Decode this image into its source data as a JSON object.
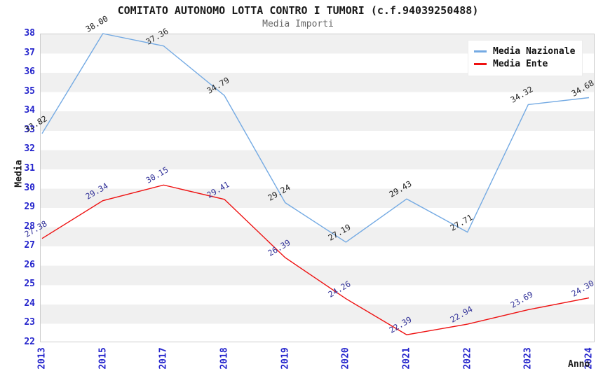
{
  "header": {
    "title": "COMITATO AUTONOMO LOTTA CONTRO I TUMORI (c.f.94039250488)",
    "subtitle": "Media Importi"
  },
  "chart_data": {
    "type": "line",
    "title": "COMITATO AUTONOMO LOTTA CONTRO I TUMORI (c.f.94039250488)",
    "subtitle": "Media Importi",
    "xlabel": "Anno",
    "ylabel": "Media",
    "categories": [
      "2013",
      "2015",
      "2017",
      "2018",
      "2019",
      "2020",
      "2021",
      "2022",
      "2023",
      "2024"
    ],
    "series": [
      {
        "name": "Media Nazionale",
        "color": "#74aae3",
        "label_color": "#222222",
        "values": [
          32.82,
          38.0,
          37.36,
          34.79,
          29.24,
          27.19,
          29.43,
          27.71,
          34.32,
          34.68
        ]
      },
      {
        "name": "Media Ente",
        "color": "#ee1111",
        "label_color": "#333399",
        "values": [
          27.38,
          29.34,
          30.15,
          29.41,
          26.39,
          24.26,
          22.39,
          22.94,
          23.69,
          24.3
        ]
      }
    ],
    "ylim": [
      22,
      38
    ],
    "yticks": [
      22,
      23,
      24,
      25,
      26,
      27,
      28,
      29,
      30,
      31,
      32,
      33,
      34,
      35,
      36,
      37,
      38
    ],
    "grid": "striped-horizontal-bands",
    "legend_position": "top-right",
    "tick_label_color": "#2424cc",
    "stripe_color": "#f0f0f0",
    "plot_border_color": "#cccccc"
  }
}
